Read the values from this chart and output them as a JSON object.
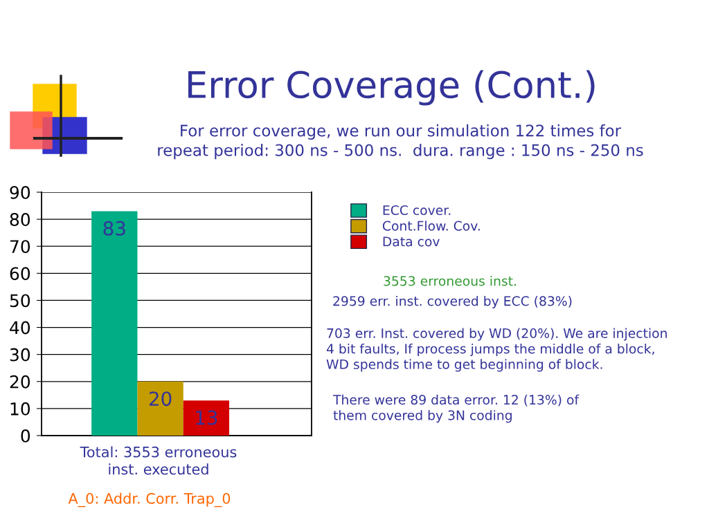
{
  "chart_data": {
    "type": "bar",
    "title": "Error Coverage (Cont.)",
    "subtitle": "For error coverage, we run our simulation 122 times for\nrepeat period: 300 ns - 500 ns.  dura. range : 150 ns - 250 ns",
    "categories": [
      null
    ],
    "series": [
      {
        "name": "ECC cover.",
        "color": "#00ad84",
        "values": [
          83
        ]
      },
      {
        "name": "Cont.Flow. Cov.",
        "color": "#c49c00",
        "values": [
          20
        ]
      },
      {
        "name": "Data cov",
        "color": "#d40000",
        "values": [
          13
        ]
      }
    ],
    "ylim": [
      0,
      90
    ],
    "yticks": [
      0,
      10,
      20,
      30,
      40,
      50,
      60,
      70,
      80,
      90
    ],
    "grid": "y",
    "legend": "right",
    "data_labels": true,
    "tick_labels": "y",
    "annotations": [
      "3553 erroneous inst.",
      "2959 err. inst. covered by ECC (83%)",
      "703 err. Inst. covered by WD (20%). We are injection\n4 bit faults, If process jumps the middle of a block,\nWD spends time to get beginning of block.",
      "There were 89 data error. 12 (13%) of\nthem covered by 3N coding",
      "Total: 3553 erroneous\ninst. executed",
      "A_0: Addr. Corr. Trap_0"
    ]
  }
}
